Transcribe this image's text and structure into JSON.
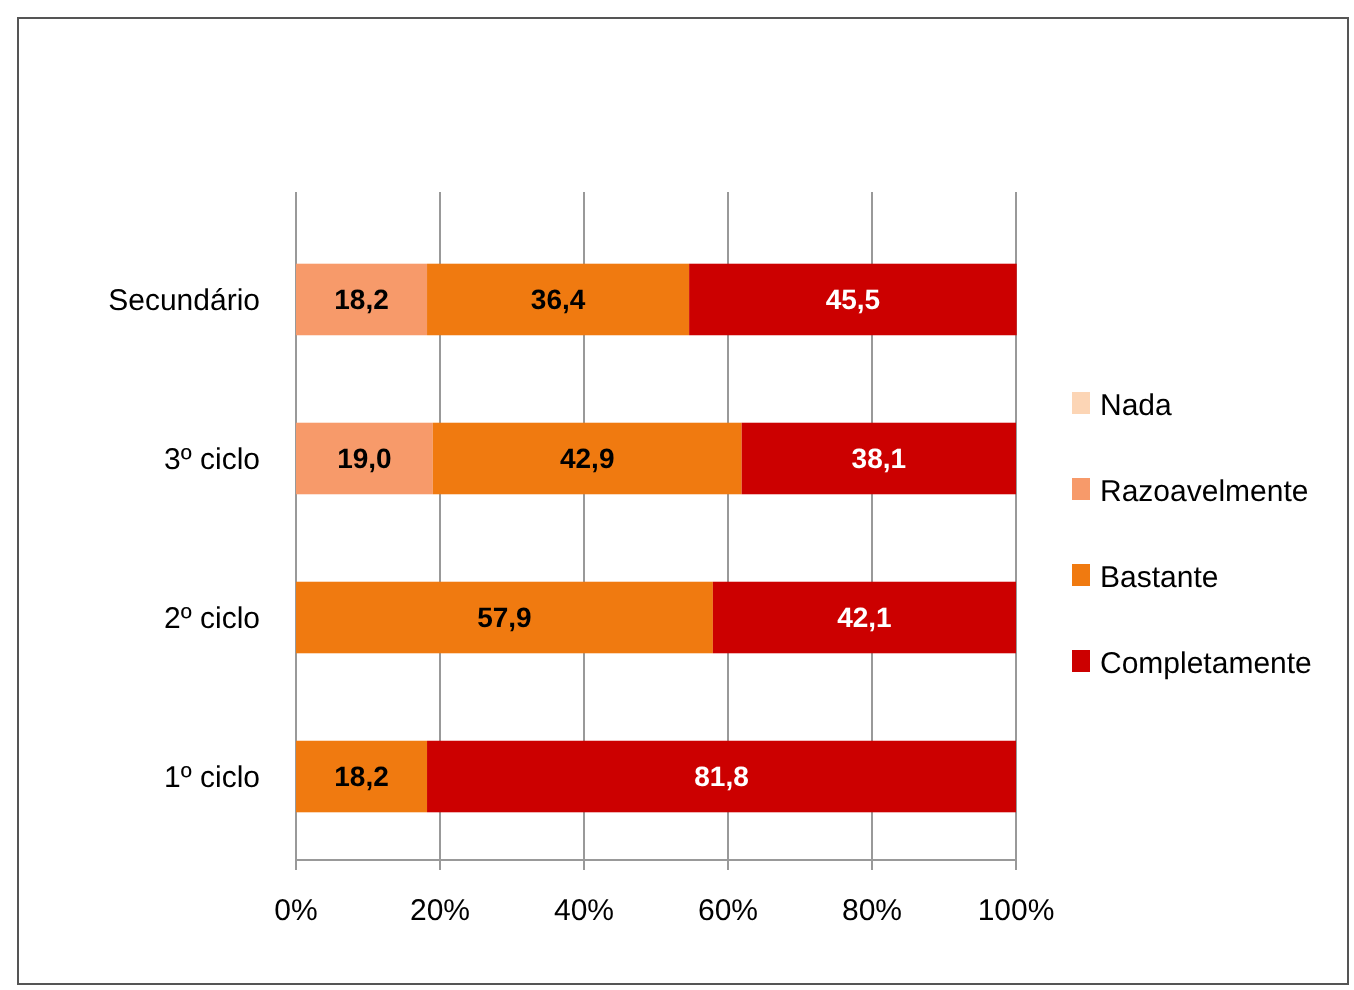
{
  "chart_data": {
    "type": "bar",
    "orientation": "horizontal",
    "stacked": true,
    "categories": [
      "Secundário",
      "3º ciclo",
      "2º ciclo",
      "1º ciclo"
    ],
    "series": [
      {
        "name": "Nada",
        "color": "#fcd5b5",
        "values": [
          null,
          null,
          null,
          null
        ]
      },
      {
        "name": "Razoavelmente",
        "color": "#f79a6a",
        "values": [
          18.2,
          19.0,
          null,
          null
        ],
        "value_labels": [
          "18,2",
          "19,0",
          null,
          null
        ]
      },
      {
        "name": "Bastante",
        "color": "#f07a10",
        "values": [
          36.4,
          42.9,
          57.9,
          18.2
        ],
        "value_labels": [
          "36,4",
          "42,9",
          "57,9",
          "18,2"
        ]
      },
      {
        "name": "Completamente",
        "color": "#cc0000",
        "values": [
          45.5,
          38.1,
          42.1,
          81.8
        ],
        "value_labels": [
          "45,5",
          "38,1",
          "42,1",
          "81,8"
        ]
      }
    ],
    "xlim": [
      0,
      100
    ],
    "xticks": [
      {
        "value": 0,
        "label": "0%"
      },
      {
        "value": 20,
        "label": "20%"
      },
      {
        "value": 40,
        "label": "40%"
      },
      {
        "value": 60,
        "label": "60%"
      },
      {
        "value": 80,
        "label": "80%"
      },
      {
        "value": 100,
        "label": "100%"
      }
    ],
    "grid": "x",
    "legend": "right"
  }
}
